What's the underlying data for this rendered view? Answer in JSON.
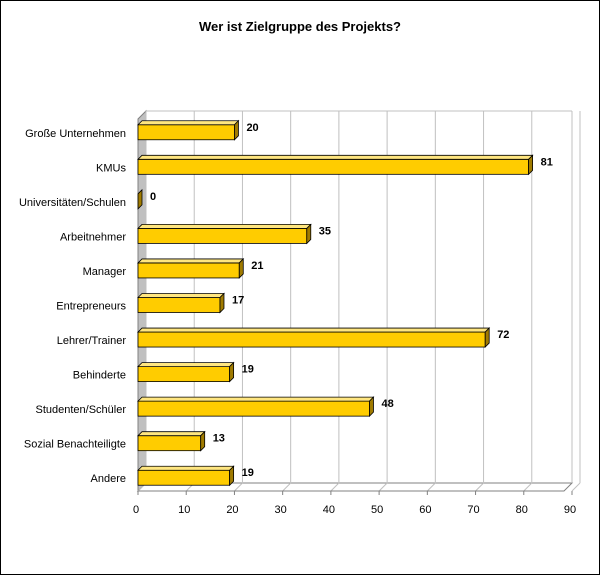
{
  "chart_data": {
    "type": "bar",
    "orientation": "horizontal",
    "title": "Wer ist Zielgruppe des Projekts?",
    "categories": [
      "Große Unternehmen",
      "KMUs",
      "Universitäten/Schulen",
      "Arbeitnehmer",
      "Manager",
      "Entrepreneurs",
      "Lehrer/Trainer",
      "Behinderte",
      "Studenten/Schüler",
      "Sozial Benachteiligte",
      "Andere"
    ],
    "values": [
      20,
      81,
      0,
      35,
      21,
      17,
      72,
      19,
      48,
      13,
      19
    ],
    "xlim": [
      0,
      90
    ],
    "x_ticks": [
      0,
      10,
      20,
      30,
      40,
      50,
      60,
      70,
      80,
      90
    ],
    "grid": "vertical",
    "legend": "none",
    "style": "3d-bars"
  },
  "colors": {
    "bar_front": "#ffcc00",
    "bar_top": "#ffe680",
    "bar_side": "#a07b00",
    "bar_outline": "#000000",
    "grid": "#c0c0c0",
    "wall": "#c0c0c0",
    "background": "#ffffff"
  }
}
